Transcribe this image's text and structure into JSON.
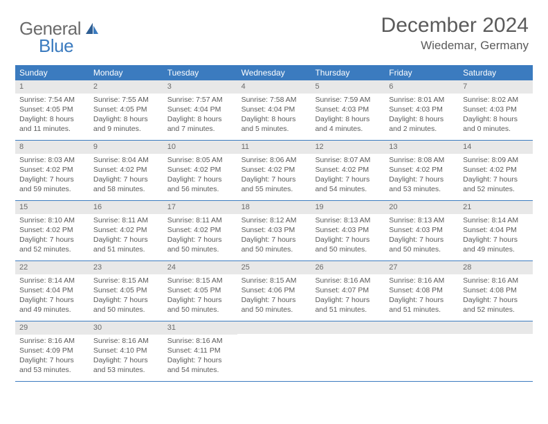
{
  "logo": {
    "text1": "General",
    "text2": "Blue"
  },
  "title": "December 2024",
  "location": "Wiedemar, Germany",
  "colors": {
    "header_bg": "#3b7bbf",
    "header_text": "#ffffff",
    "daynum_bg": "#e8e8e8",
    "text": "#5a5a5a",
    "border": "#3b7bbf"
  },
  "weekdays": [
    "Sunday",
    "Monday",
    "Tuesday",
    "Wednesday",
    "Thursday",
    "Friday",
    "Saturday"
  ],
  "weeks": [
    [
      {
        "n": "1",
        "sr": "7:54 AM",
        "ss": "4:05 PM",
        "dl": "8 hours and 11 minutes."
      },
      {
        "n": "2",
        "sr": "7:55 AM",
        "ss": "4:05 PM",
        "dl": "8 hours and 9 minutes."
      },
      {
        "n": "3",
        "sr": "7:57 AM",
        "ss": "4:04 PM",
        "dl": "8 hours and 7 minutes."
      },
      {
        "n": "4",
        "sr": "7:58 AM",
        "ss": "4:04 PM",
        "dl": "8 hours and 5 minutes."
      },
      {
        "n": "5",
        "sr": "7:59 AM",
        "ss": "4:03 PM",
        "dl": "8 hours and 4 minutes."
      },
      {
        "n": "6",
        "sr": "8:01 AM",
        "ss": "4:03 PM",
        "dl": "8 hours and 2 minutes."
      },
      {
        "n": "7",
        "sr": "8:02 AM",
        "ss": "4:03 PM",
        "dl": "8 hours and 0 minutes."
      }
    ],
    [
      {
        "n": "8",
        "sr": "8:03 AM",
        "ss": "4:02 PM",
        "dl": "7 hours and 59 minutes."
      },
      {
        "n": "9",
        "sr": "8:04 AM",
        "ss": "4:02 PM",
        "dl": "7 hours and 58 minutes."
      },
      {
        "n": "10",
        "sr": "8:05 AM",
        "ss": "4:02 PM",
        "dl": "7 hours and 56 minutes."
      },
      {
        "n": "11",
        "sr": "8:06 AM",
        "ss": "4:02 PM",
        "dl": "7 hours and 55 minutes."
      },
      {
        "n": "12",
        "sr": "8:07 AM",
        "ss": "4:02 PM",
        "dl": "7 hours and 54 minutes."
      },
      {
        "n": "13",
        "sr": "8:08 AM",
        "ss": "4:02 PM",
        "dl": "7 hours and 53 minutes."
      },
      {
        "n": "14",
        "sr": "8:09 AM",
        "ss": "4:02 PM",
        "dl": "7 hours and 52 minutes."
      }
    ],
    [
      {
        "n": "15",
        "sr": "8:10 AM",
        "ss": "4:02 PM",
        "dl": "7 hours and 52 minutes."
      },
      {
        "n": "16",
        "sr": "8:11 AM",
        "ss": "4:02 PM",
        "dl": "7 hours and 51 minutes."
      },
      {
        "n": "17",
        "sr": "8:11 AM",
        "ss": "4:02 PM",
        "dl": "7 hours and 50 minutes."
      },
      {
        "n": "18",
        "sr": "8:12 AM",
        "ss": "4:03 PM",
        "dl": "7 hours and 50 minutes."
      },
      {
        "n": "19",
        "sr": "8:13 AM",
        "ss": "4:03 PM",
        "dl": "7 hours and 50 minutes."
      },
      {
        "n": "20",
        "sr": "8:13 AM",
        "ss": "4:03 PM",
        "dl": "7 hours and 50 minutes."
      },
      {
        "n": "21",
        "sr": "8:14 AM",
        "ss": "4:04 PM",
        "dl": "7 hours and 49 minutes."
      }
    ],
    [
      {
        "n": "22",
        "sr": "8:14 AM",
        "ss": "4:04 PM",
        "dl": "7 hours and 49 minutes."
      },
      {
        "n": "23",
        "sr": "8:15 AM",
        "ss": "4:05 PM",
        "dl": "7 hours and 50 minutes."
      },
      {
        "n": "24",
        "sr": "8:15 AM",
        "ss": "4:05 PM",
        "dl": "7 hours and 50 minutes."
      },
      {
        "n": "25",
        "sr": "8:15 AM",
        "ss": "4:06 PM",
        "dl": "7 hours and 50 minutes."
      },
      {
        "n": "26",
        "sr": "8:16 AM",
        "ss": "4:07 PM",
        "dl": "7 hours and 51 minutes."
      },
      {
        "n": "27",
        "sr": "8:16 AM",
        "ss": "4:08 PM",
        "dl": "7 hours and 51 minutes."
      },
      {
        "n": "28",
        "sr": "8:16 AM",
        "ss": "4:08 PM",
        "dl": "7 hours and 52 minutes."
      }
    ],
    [
      {
        "n": "29",
        "sr": "8:16 AM",
        "ss": "4:09 PM",
        "dl": "7 hours and 53 minutes."
      },
      {
        "n": "30",
        "sr": "8:16 AM",
        "ss": "4:10 PM",
        "dl": "7 hours and 53 minutes."
      },
      {
        "n": "31",
        "sr": "8:16 AM",
        "ss": "4:11 PM",
        "dl": "7 hours and 54 minutes."
      },
      null,
      null,
      null,
      null
    ]
  ],
  "labels": {
    "sunrise": "Sunrise:",
    "sunset": "Sunset:",
    "daylight": "Daylight:"
  }
}
